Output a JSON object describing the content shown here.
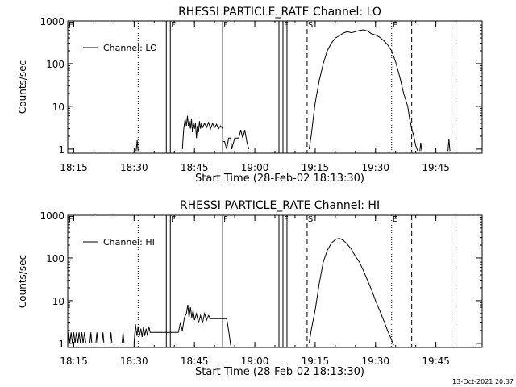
{
  "footer": {
    "timestamp": "13-Oct-2021 20:37"
  },
  "chart_data": [
    {
      "type": "line",
      "title": "RHESSI PARTICLE_RATE Channel: LO",
      "xlabel": "Start Time (28-Feb-02 18:13:30)",
      "ylabel": "Counts/sec",
      "yscale": "log",
      "xlim": [
        "18:13:30",
        "19:56:30"
      ],
      "ylim": [
        0.8,
        1000
      ],
      "x_ticks": [
        "18:15",
        "18:30",
        "18:45",
        "19:00",
        "19:15",
        "19:30",
        "19:45"
      ],
      "y_ticks": [
        "1",
        "10",
        "100",
        "1000"
      ],
      "legend": {
        "entries": [
          "Channel: LO"
        ],
        "position": "top-left"
      },
      "markers": [
        {
          "label": "F",
          "time": "18:13:30",
          "style": "solid"
        },
        {
          "label": "",
          "time": "18:31",
          "style": "dotted"
        },
        {
          "label": "",
          "time": "18:38",
          "style": "solid"
        },
        {
          "label": "F",
          "time": "18:39",
          "style": "solid"
        },
        {
          "label": "F",
          "time": "18:52",
          "style": "solid"
        },
        {
          "label": "",
          "time": "19:06",
          "style": "solid"
        },
        {
          "label": "F",
          "time": "19:07",
          "style": "solid"
        },
        {
          "label": "",
          "time": "19:08",
          "style": "solid"
        },
        {
          "label": "S",
          "time": "19:13",
          "style": "dashed"
        },
        {
          "label": "E",
          "time": "19:34",
          "style": "dotted"
        },
        {
          "label": "",
          "time": "19:39",
          "style": "dashed"
        },
        {
          "label": "",
          "time": "19:50",
          "style": "dotted"
        }
      ],
      "series": [
        {
          "name": "Channel: LO",
          "segments": [
            [
              [
                "18:30:30",
                0.9
              ],
              [
                "18:30:45",
                1.6
              ],
              [
                "18:31",
                0.9
              ]
            ],
            [
              [
                "18:42",
                1
              ],
              [
                "18:42:20",
                3
              ],
              [
                "18:42:40",
                5
              ],
              [
                "18:43",
                3.5
              ],
              [
                "18:43:15",
                6
              ],
              [
                "18:43:30",
                3.5
              ],
              [
                "18:43:45",
                4.5
              ],
              [
                "18:44",
                3
              ],
              [
                "18:44:15",
                5
              ],
              [
                "18:44:30",
                2.5
              ],
              [
                "18:44:45",
                4
              ],
              [
                "18:45",
                3
              ],
              [
                "18:45:15",
                4
              ],
              [
                "18:45:30",
                1.8
              ],
              [
                "18:45:45",
                3.5
              ],
              [
                "18:46",
                2.5
              ],
              [
                "18:46:15",
                4.5
              ],
              [
                "18:46:30",
                3
              ],
              [
                "18:46:45",
                4
              ],
              [
                "18:47",
                3.2
              ],
              [
                "18:47:30",
                4
              ],
              [
                "18:48",
                3.2
              ],
              [
                "18:48:30",
                4.2
              ],
              [
                "18:49",
                3
              ],
              [
                "18:49:30",
                4
              ],
              [
                "18:50",
                3.2
              ],
              [
                "18:50:30",
                3.8
              ],
              [
                "18:51",
                3
              ],
              [
                "18:51:30",
                3.5
              ],
              [
                "18:52",
                3
              ]
            ],
            [
              [
                "18:52",
                1.5
              ],
              [
                "18:52:30",
                1.5
              ],
              [
                "18:53",
                1
              ],
              [
                "18:53:30",
                1.8
              ],
              [
                "18:54",
                1.8
              ],
              [
                "18:54:15",
                1
              ],
              [
                "18:55",
                1.8
              ],
              [
                "18:56",
                1.8
              ],
              [
                "18:56:30",
                2.8
              ],
              [
                "18:57",
                1.8
              ],
              [
                "18:57:30",
                2.8
              ],
              [
                "18:58",
                1.5
              ],
              [
                "18:58:30",
                1
              ]
            ],
            [
              [
                "19:13:30",
                1
              ],
              [
                "19:14",
                2
              ],
              [
                "19:14:30",
                5
              ],
              [
                "19:15",
                12
              ],
              [
                "19:16",
                40
              ],
              [
                "19:17",
                100
              ],
              [
                "19:18",
                200
              ],
              [
                "19:19",
                300
              ],
              [
                "19:20",
                400
              ],
              [
                "19:21",
                450
              ],
              [
                "19:22",
                520
              ],
              [
                "19:23",
                560
              ],
              [
                "19:24",
                530
              ],
              [
                "19:25",
                560
              ],
              [
                "19:26",
                600
              ],
              [
                "19:27",
                620
              ],
              [
                "19:28",
                580
              ],
              [
                "19:29",
                500
              ],
              [
                "19:30",
                470
              ],
              [
                "19:31",
                420
              ],
              [
                "19:32",
                350
              ],
              [
                "19:33",
                280
              ],
              [
                "19:34",
                200
              ],
              [
                "19:35",
                110
              ],
              [
                "19:36",
                50
              ],
              [
                "19:37",
                20
              ],
              [
                "19:38",
                10
              ],
              [
                "19:38:30",
                5
              ],
              [
                "19:39",
                3
              ],
              [
                "19:39:30",
                2
              ],
              [
                "19:40",
                1.2
              ],
              [
                "19:40:30",
                0.9
              ]
            ],
            [
              [
                "19:41",
                0.9
              ],
              [
                "19:41:15",
                1.4
              ],
              [
                "19:41:30",
                0.9
              ]
            ],
            [
              [
                "19:48",
                0.9
              ],
              [
                "19:48:15",
                1.7
              ],
              [
                "19:48:30",
                0.9
              ]
            ]
          ]
        }
      ]
    },
    {
      "type": "line",
      "title": "RHESSI PARTICLE_RATE Channel: HI",
      "xlabel": "Start Time (28-Feb-02 18:13:30)",
      "ylabel": "Counts/sec",
      "yscale": "log",
      "xlim": [
        "18:13:30",
        "19:56:30"
      ],
      "ylim": [
        0.8,
        1000
      ],
      "x_ticks": [
        "18:15",
        "18:30",
        "18:45",
        "19:00",
        "19:15",
        "19:30",
        "19:45"
      ],
      "y_ticks": [
        "1",
        "10",
        "100",
        "1000"
      ],
      "legend": {
        "entries": [
          "Channel: HI"
        ],
        "position": "top-left"
      },
      "markers": [
        {
          "label": "F",
          "time": "18:13:30",
          "style": "solid"
        },
        {
          "label": "",
          "time": "18:31",
          "style": "dotted"
        },
        {
          "label": "",
          "time": "18:38",
          "style": "solid"
        },
        {
          "label": "F",
          "time": "18:39",
          "style": "solid"
        },
        {
          "label": "F",
          "time": "18:52",
          "style": "solid"
        },
        {
          "label": "",
          "time": "19:06",
          "style": "solid"
        },
        {
          "label": "F",
          "time": "19:07",
          "style": "solid"
        },
        {
          "label": "",
          "time": "19:08",
          "style": "solid"
        },
        {
          "label": "S",
          "time": "19:13",
          "style": "dashed"
        },
        {
          "label": "E",
          "time": "19:34",
          "style": "dotted"
        },
        {
          "label": "",
          "time": "19:39",
          "style": "dashed"
        },
        {
          "label": "",
          "time": "19:50",
          "style": "dotted"
        }
      ],
      "series": [
        {
          "name": "Channel: HI",
          "segments": [
            [
              [
                "18:13:30",
                1
              ],
              [
                "18:13:45",
                1.8
              ],
              [
                "18:14",
                1
              ],
              [
                "18:14:20",
                1.8
              ],
              [
                "18:14:40",
                1
              ],
              [
                "18:15",
                1.8
              ],
              [
                "18:15:20",
                1
              ],
              [
                "18:15:40",
                1.8
              ],
              [
                "18:16",
                1
              ],
              [
                "18:16:20",
                1.8
              ],
              [
                "18:16:40",
                1
              ],
              [
                "18:17",
                1.8
              ],
              [
                "18:17:20",
                1
              ],
              [
                "18:17:40",
                1.8
              ],
              [
                "18:18",
                1
              ]
            ],
            [
              [
                "18:19",
                1
              ],
              [
                "18:19:15",
                1.8
              ],
              [
                "18:19:30",
                1
              ]
            ],
            [
              [
                "18:20:30",
                1
              ],
              [
                "18:20:45",
                1.8
              ],
              [
                "18:21",
                1
              ]
            ],
            [
              [
                "18:22",
                1
              ],
              [
                "18:22:15",
                1.8
              ],
              [
                "18:22:30",
                1
              ]
            ],
            [
              [
                "18:24",
                1
              ],
              [
                "18:24:15",
                1.8
              ],
              [
                "18:24:30",
                1
              ]
            ],
            [
              [
                "18:27",
                1
              ],
              [
                "18:27:15",
                1.8
              ],
              [
                "18:27:30",
                1
              ]
            ],
            [
              [
                "18:30",
                1
              ],
              [
                "18:30:20",
                2.8
              ],
              [
                "18:30:40",
                1.5
              ],
              [
                "18:31",
                2.5
              ],
              [
                "18:31:20",
                1.5
              ],
              [
                "18:31:40",
                2.2
              ],
              [
                "18:32",
                1.4
              ],
              [
                "18:32:20",
                2.5
              ],
              [
                "18:32:40",
                1.5
              ],
              [
                "18:33",
                2.2
              ],
              [
                "18:33:20",
                1.5
              ],
              [
                "18:33:40",
                2.5
              ],
              [
                "18:34",
                1.8
              ],
              [
                "18:38",
                1.8
              ],
              [
                "18:41",
                1.8
              ],
              [
                "18:41:30",
                3
              ],
              [
                "18:42",
                2
              ],
              [
                "18:42:30",
                4
              ],
              [
                "18:43",
                5
              ],
              [
                "18:43:20",
                8
              ],
              [
                "18:43:40",
                4
              ],
              [
                "18:44",
                7
              ],
              [
                "18:44:20",
                4
              ],
              [
                "18:44:40",
                6
              ],
              [
                "18:45",
                3.5
              ],
              [
                "18:45:30",
                5
              ],
              [
                "18:46",
                3
              ],
              [
                "18:46:30",
                4.5
              ],
              [
                "18:47",
                3
              ],
              [
                "18:47:30",
                5
              ],
              [
                "18:48",
                3.5
              ],
              [
                "18:48:30",
                4.5
              ],
              [
                "18:49",
                3.8
              ],
              [
                "18:50",
                3.8
              ],
              [
                "18:51",
                3.8
              ],
              [
                "18:52",
                3.8
              ],
              [
                "18:53",
                3.8
              ],
              [
                "18:53:30",
                2
              ],
              [
                "18:54",
                0.9
              ]
            ],
            [
              [
                "19:13:30",
                1
              ],
              [
                "19:14",
                2
              ],
              [
                "19:15",
                6
              ],
              [
                "19:16",
                25
              ],
              [
                "19:17",
                80
              ],
              [
                "19:18",
                150
              ],
              [
                "19:19",
                220
              ],
              [
                "19:20",
                270
              ],
              [
                "19:21",
                290
              ],
              [
                "19:22",
                260
              ],
              [
                "19:23",
                210
              ],
              [
                "19:24",
                160
              ],
              [
                "19:25",
                110
              ],
              [
                "19:26",
                80
              ],
              [
                "19:27",
                50
              ],
              [
                "19:28",
                30
              ],
              [
                "19:29",
                18
              ],
              [
                "19:30",
                10
              ],
              [
                "19:31",
                6
              ],
              [
                "19:32",
                3.5
              ],
              [
                "19:33",
                2
              ],
              [
                "19:34",
                1.2
              ],
              [
                "19:34:30",
                0.9
              ]
            ]
          ]
        }
      ]
    }
  ]
}
